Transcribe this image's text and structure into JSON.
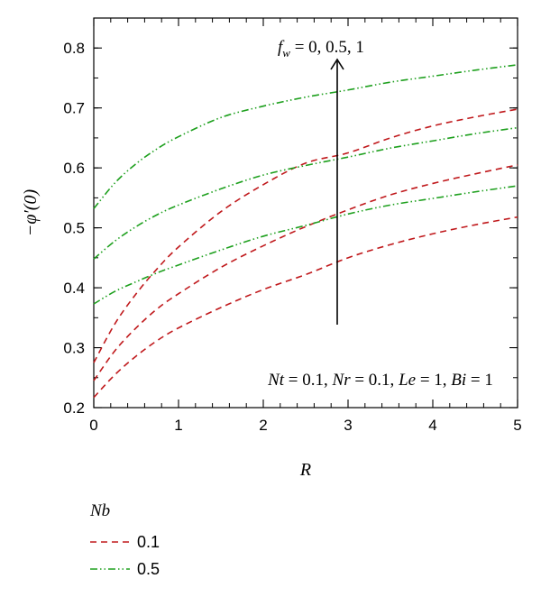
{
  "chart_data": {
    "type": "line",
    "xlabel": "R",
    "ylabel": "−φ′(0)",
    "xlim": [
      0,
      5
    ],
    "ylim": [
      0.2,
      0.85
    ],
    "x_ticks": [
      "0",
      "1",
      "2",
      "3",
      "4",
      "5"
    ],
    "y_ticks": [
      "0.2",
      "0.3",
      "0.4",
      "0.5",
      "0.6",
      "0.7",
      "0.8"
    ],
    "annotations": {
      "arrow_label": "f_w = 0, 0.5, 1",
      "params": "Nt = 0.1, Nr = 0.1, Le = 1, Bi = 1"
    },
    "legend": {
      "title": "Nb",
      "entries": [
        {
          "label": "0.1",
          "color": "#c0191c",
          "dash": "dashed"
        },
        {
          "label": "0.5",
          "color": "#1ea01e",
          "dash": "dashdotdot"
        }
      ]
    },
    "x": [
      0,
      0.25,
      0.5,
      0.75,
      1,
      1.5,
      2,
      2.5,
      3,
      3.5,
      4,
      4.5,
      5
    ],
    "series": [
      {
        "nb": "0.1",
        "fw": "0",
        "color": "#c0191c",
        "values": [
          0.217,
          0.255,
          0.286,
          0.312,
          0.333,
          0.367,
          0.397,
          0.422,
          0.45,
          0.472,
          0.49,
          0.505,
          0.518
        ]
      },
      {
        "nb": "0.1",
        "fw": "0.5",
        "color": "#c0191c",
        "values": [
          0.245,
          0.295,
          0.333,
          0.365,
          0.39,
          0.434,
          0.47,
          0.502,
          0.53,
          0.555,
          0.574,
          0.59,
          0.605
        ]
      },
      {
        "nb": "0.1",
        "fw": "1",
        "color": "#c0191c",
        "values": [
          0.275,
          0.34,
          0.39,
          0.432,
          0.468,
          0.527,
          0.572,
          0.608,
          0.625,
          0.65,
          0.67,
          0.685,
          0.698
        ]
      },
      {
        "nb": "0.5",
        "fw": "0",
        "color": "#1ea01e",
        "values": [
          0.373,
          0.394,
          0.41,
          0.425,
          0.438,
          0.463,
          0.486,
          0.504,
          0.523,
          0.538,
          0.549,
          0.56,
          0.57
        ]
      },
      {
        "nb": "0.5",
        "fw": "0.5",
        "color": "#1ea01e",
        "values": [
          0.448,
          0.478,
          0.502,
          0.522,
          0.538,
          0.565,
          0.588,
          0.604,
          0.618,
          0.633,
          0.645,
          0.657,
          0.667
        ]
      },
      {
        "nb": "0.5",
        "fw": "1",
        "color": "#1ea01e",
        "values": [
          0.532,
          0.575,
          0.607,
          0.632,
          0.652,
          0.684,
          0.703,
          0.718,
          0.73,
          0.743,
          0.753,
          0.763,
          0.772
        ]
      }
    ]
  }
}
